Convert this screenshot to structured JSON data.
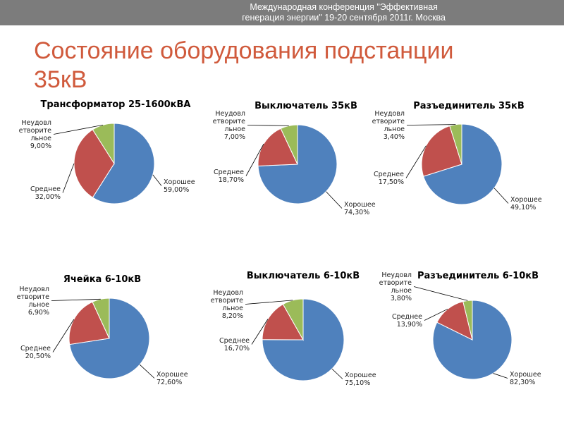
{
  "header": {
    "conference_line1": "Международная конференция \"Эффективная",
    "conference_line2": "генерация энергии\" 19-20 сентября 2011г. Москва"
  },
  "title_line1": "Состояние оборудования подстанции",
  "title_line2": "35кВ",
  "colors": {
    "good": "#4f81bd",
    "medium": "#c0504d",
    "bad": "#9bbb59",
    "header_bar": "#7c7c7c",
    "title": "#d05a3c"
  },
  "chart_data": [
    {
      "type": "pie",
      "title": "Трансформатор 25-1600кВА",
      "slices": [
        {
          "name": "Хорошее",
          "value": 59.0,
          "label_lines": [
            "Хорошее",
            "59,00%"
          ]
        },
        {
          "name": "Среднее",
          "value": 32.0,
          "label_lines": [
            "Среднее",
            "32,00%"
          ]
        },
        {
          "name": "Неудовлетворительное",
          "value": 9.0,
          "label_lines": [
            "Неудовл",
            "етворите",
            "льное",
            "9,00%"
          ]
        }
      ]
    },
    {
      "type": "pie",
      "title": "Выключатель 35кВ",
      "slices": [
        {
          "name": "Хорошее",
          "value": 74.3,
          "label_lines": [
            "Хорошее",
            "74,30%"
          ]
        },
        {
          "name": "Среднее",
          "value": 18.7,
          "label_lines": [
            "Среднее",
            "18,70%"
          ]
        },
        {
          "name": "Неудовлетворительное",
          "value": 7.0,
          "label_lines": [
            "Неудовл",
            "етворите",
            "льное",
            "7,00%"
          ]
        }
      ]
    },
    {
      "type": "pie",
      "title": "Разъединитель 35кВ",
      "slices": [
        {
          "name": "Хорошее",
          "value": 49.1,
          "label_lines": [
            "Хорошее",
            "49,10%"
          ]
        },
        {
          "name": "Среднее",
          "value": 17.5,
          "label_lines": [
            "Среднее",
            "17,50%"
          ]
        },
        {
          "name": "Неудовлетворительное",
          "value": 3.4,
          "label_lines": [
            "Неудовл",
            "етворите",
            "льное",
            "3,40%"
          ]
        }
      ]
    },
    {
      "type": "pie",
      "title": "Ячейка 6-10кВ",
      "slices": [
        {
          "name": "Хорошее",
          "value": 72.6,
          "label_lines": [
            "Хорошее",
            "72,60%"
          ]
        },
        {
          "name": "Среднее",
          "value": 20.5,
          "label_lines": [
            "Среднее",
            "20,50%"
          ]
        },
        {
          "name": "Неудовлетворительное",
          "value": 6.9,
          "label_lines": [
            "Неудовл",
            "етворите",
            "льное",
            "6,90%"
          ]
        }
      ]
    },
    {
      "type": "pie",
      "title": "Выключатель  6-10кВ",
      "slices": [
        {
          "name": "Хорошее",
          "value": 75.1,
          "label_lines": [
            "Хорошее",
            "75,10%"
          ]
        },
        {
          "name": "Среднее",
          "value": 16.7,
          "label_lines": [
            "Среднее",
            "16,70%"
          ]
        },
        {
          "name": "Неудовлетворительное",
          "value": 8.2,
          "label_lines": [
            "Неудовл",
            "етворите",
            "льное",
            "8,20%"
          ]
        }
      ]
    },
    {
      "type": "pie",
      "title": "Разъединитель  6-10кВ",
      "slices": [
        {
          "name": "Хорошее",
          "value": 82.3,
          "label_lines": [
            "Хорошее",
            "82,30%"
          ]
        },
        {
          "name": "Среднее",
          "value": 13.9,
          "label_lines": [
            "Среднее",
            "13,90%"
          ]
        },
        {
          "name": "Неудовлетворительное",
          "value": 3.8,
          "label_lines": [
            "Неудовл",
            "етворите",
            "льное",
            "3,80%"
          ]
        }
      ]
    }
  ]
}
